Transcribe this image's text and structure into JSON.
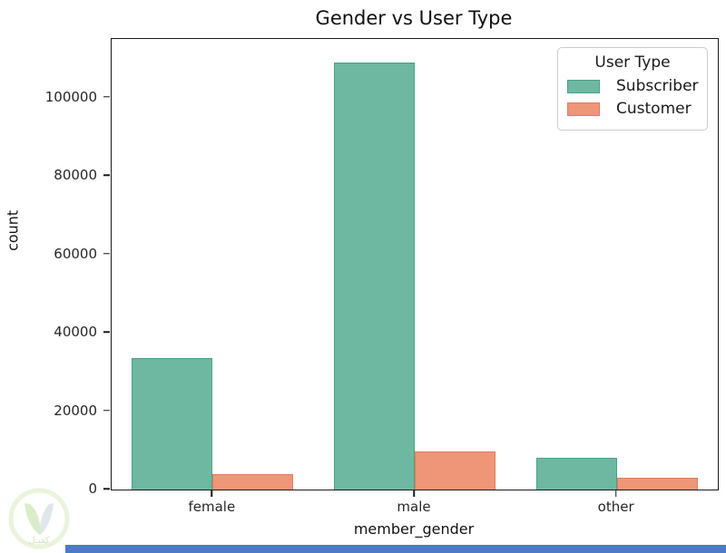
{
  "chart_data": {
    "type": "bar",
    "title": "Gender vs User Type",
    "xlabel": "member_gender",
    "ylabel": "count",
    "categories": [
      "female",
      "male",
      "other"
    ],
    "series": [
      {
        "name": "Subscriber",
        "color": "#6eb8a1",
        "edge_color": "#47a284",
        "values": [
          33500,
          108900,
          8000
        ]
      },
      {
        "name": "Customer",
        "color": "#ef9678",
        "edge_color": "#dd7d59",
        "values": [
          4000,
          9650,
          2900
        ]
      }
    ],
    "legend": {
      "title": "User Type",
      "position": "upper right"
    },
    "ylim": [
      0,
      115000
    ],
    "yticks": [
      0,
      20000,
      40000,
      60000,
      80000,
      100000
    ],
    "grid": false,
    "bar_group_width": 0.8
  },
  "watermark": {
    "text": "كفيـل",
    "ring_color": "#cde6ad",
    "leaf_color": "#a8d37f",
    "shield_color": "#b9c4cf"
  },
  "chrome": {
    "bottom_bar_color": "#4e7bc4"
  }
}
